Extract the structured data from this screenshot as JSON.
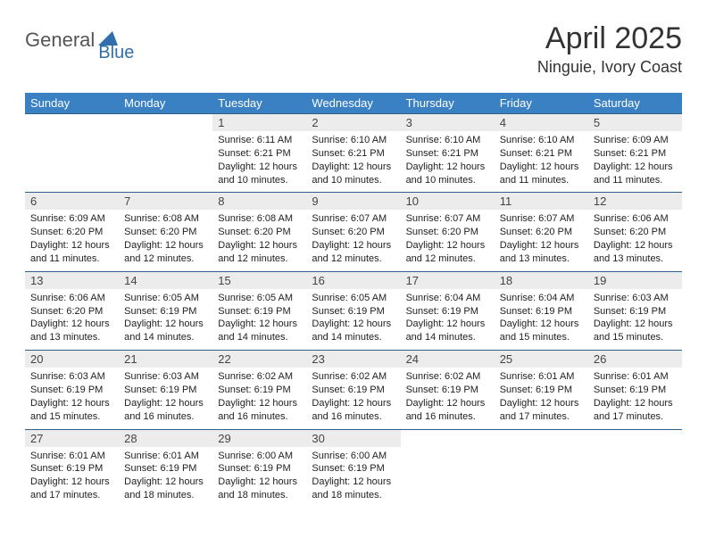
{
  "logo": {
    "part1": "General",
    "part2": "Blue"
  },
  "title": "April 2025",
  "location": "Ninguie, Ivory Coast",
  "colors": {
    "header_bg": "#3a81c4",
    "daynum_bg": "#ececec",
    "rule": "#2f5f8a",
    "logo_blue": "#2f6fab"
  },
  "weekdays": [
    "Sunday",
    "Monday",
    "Tuesday",
    "Wednesday",
    "Thursday",
    "Friday",
    "Saturday"
  ],
  "weeks": [
    [
      null,
      null,
      {
        "n": "1",
        "sr": "6:11 AM",
        "ss": "6:21 PM",
        "dl": "12 hours and 10 minutes."
      },
      {
        "n": "2",
        "sr": "6:10 AM",
        "ss": "6:21 PM",
        "dl": "12 hours and 10 minutes."
      },
      {
        "n": "3",
        "sr": "6:10 AM",
        "ss": "6:21 PM",
        "dl": "12 hours and 10 minutes."
      },
      {
        "n": "4",
        "sr": "6:10 AM",
        "ss": "6:21 PM",
        "dl": "12 hours and 11 minutes."
      },
      {
        "n": "5",
        "sr": "6:09 AM",
        "ss": "6:21 PM",
        "dl": "12 hours and 11 minutes."
      }
    ],
    [
      {
        "n": "6",
        "sr": "6:09 AM",
        "ss": "6:20 PM",
        "dl": "12 hours and 11 minutes."
      },
      {
        "n": "7",
        "sr": "6:08 AM",
        "ss": "6:20 PM",
        "dl": "12 hours and 12 minutes."
      },
      {
        "n": "8",
        "sr": "6:08 AM",
        "ss": "6:20 PM",
        "dl": "12 hours and 12 minutes."
      },
      {
        "n": "9",
        "sr": "6:07 AM",
        "ss": "6:20 PM",
        "dl": "12 hours and 12 minutes."
      },
      {
        "n": "10",
        "sr": "6:07 AM",
        "ss": "6:20 PM",
        "dl": "12 hours and 12 minutes."
      },
      {
        "n": "11",
        "sr": "6:07 AM",
        "ss": "6:20 PM",
        "dl": "12 hours and 13 minutes."
      },
      {
        "n": "12",
        "sr": "6:06 AM",
        "ss": "6:20 PM",
        "dl": "12 hours and 13 minutes."
      }
    ],
    [
      {
        "n": "13",
        "sr": "6:06 AM",
        "ss": "6:20 PM",
        "dl": "12 hours and 13 minutes."
      },
      {
        "n": "14",
        "sr": "6:05 AM",
        "ss": "6:19 PM",
        "dl": "12 hours and 14 minutes."
      },
      {
        "n": "15",
        "sr": "6:05 AM",
        "ss": "6:19 PM",
        "dl": "12 hours and 14 minutes."
      },
      {
        "n": "16",
        "sr": "6:05 AM",
        "ss": "6:19 PM",
        "dl": "12 hours and 14 minutes."
      },
      {
        "n": "17",
        "sr": "6:04 AM",
        "ss": "6:19 PM",
        "dl": "12 hours and 14 minutes."
      },
      {
        "n": "18",
        "sr": "6:04 AM",
        "ss": "6:19 PM",
        "dl": "12 hours and 15 minutes."
      },
      {
        "n": "19",
        "sr": "6:03 AM",
        "ss": "6:19 PM",
        "dl": "12 hours and 15 minutes."
      }
    ],
    [
      {
        "n": "20",
        "sr": "6:03 AM",
        "ss": "6:19 PM",
        "dl": "12 hours and 15 minutes."
      },
      {
        "n": "21",
        "sr": "6:03 AM",
        "ss": "6:19 PM",
        "dl": "12 hours and 16 minutes."
      },
      {
        "n": "22",
        "sr": "6:02 AM",
        "ss": "6:19 PM",
        "dl": "12 hours and 16 minutes."
      },
      {
        "n": "23",
        "sr": "6:02 AM",
        "ss": "6:19 PM",
        "dl": "12 hours and 16 minutes."
      },
      {
        "n": "24",
        "sr": "6:02 AM",
        "ss": "6:19 PM",
        "dl": "12 hours and 16 minutes."
      },
      {
        "n": "25",
        "sr": "6:01 AM",
        "ss": "6:19 PM",
        "dl": "12 hours and 17 minutes."
      },
      {
        "n": "26",
        "sr": "6:01 AM",
        "ss": "6:19 PM",
        "dl": "12 hours and 17 minutes."
      }
    ],
    [
      {
        "n": "27",
        "sr": "6:01 AM",
        "ss": "6:19 PM",
        "dl": "12 hours and 17 minutes."
      },
      {
        "n": "28",
        "sr": "6:01 AM",
        "ss": "6:19 PM",
        "dl": "12 hours and 18 minutes."
      },
      {
        "n": "29",
        "sr": "6:00 AM",
        "ss": "6:19 PM",
        "dl": "12 hours and 18 minutes."
      },
      {
        "n": "30",
        "sr": "6:00 AM",
        "ss": "6:19 PM",
        "dl": "12 hours and 18 minutes."
      },
      null,
      null,
      null
    ]
  ],
  "labels": {
    "sunrise": "Sunrise:",
    "sunset": "Sunset:",
    "daylight": "Daylight:"
  }
}
